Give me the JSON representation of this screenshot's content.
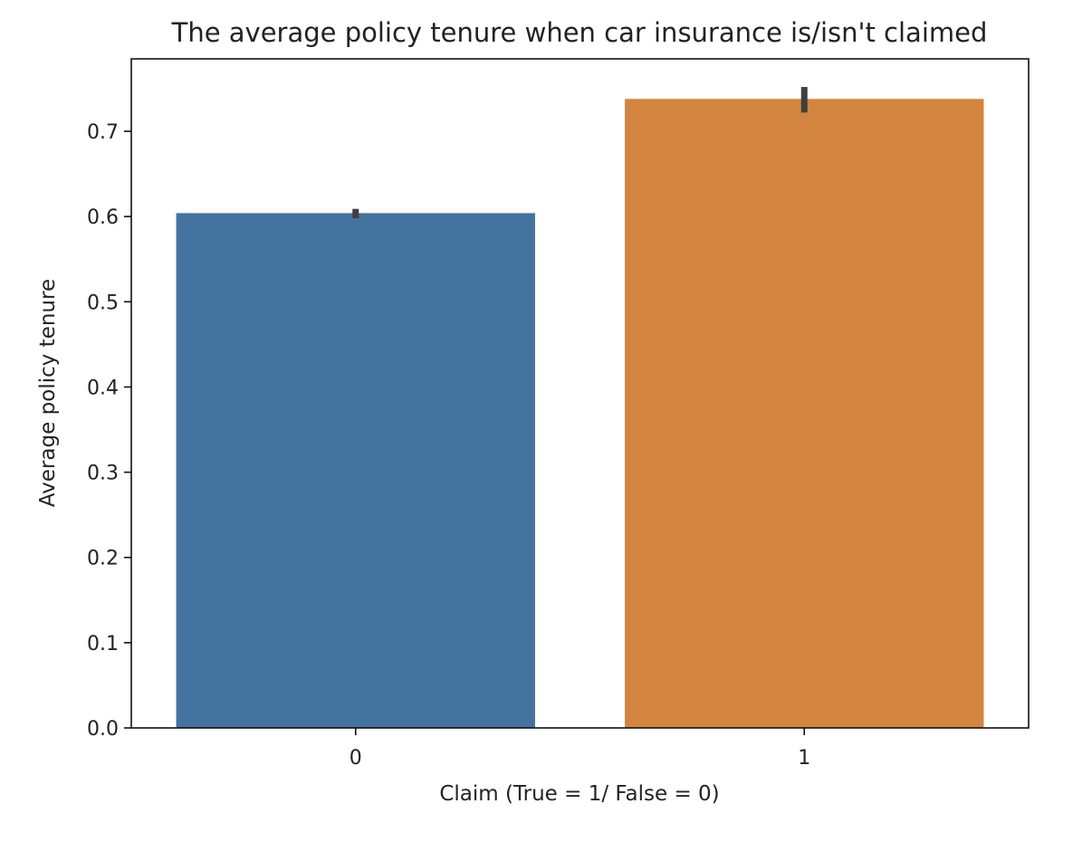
{
  "chart_data": {
    "type": "bar",
    "title": "The average policy tenure when car insurance is/isn't claimed",
    "xlabel": "Claim (True = 1/ False = 0)",
    "ylabel": "Average policy tenure",
    "categories": [
      "0",
      "1"
    ],
    "values": [
      0.604,
      0.738
    ],
    "error_bars": [
      [
        0.598,
        0.609
      ],
      [
        0.722,
        0.752
      ]
    ],
    "colors": [
      "#4473a0",
      "#d3853f"
    ],
    "error_bar_color": "#3f3f3f",
    "ylim": [
      0,
      0.785
    ],
    "yticks": [
      0.0,
      0.1,
      0.2,
      0.3,
      0.4,
      0.5,
      0.6,
      0.7
    ],
    "ytick_labels": [
      "0.0",
      "0.1",
      "0.2",
      "0.3",
      "0.4",
      "0.5",
      "0.6",
      "0.7"
    ],
    "grid": false,
    "legend": "none"
  }
}
